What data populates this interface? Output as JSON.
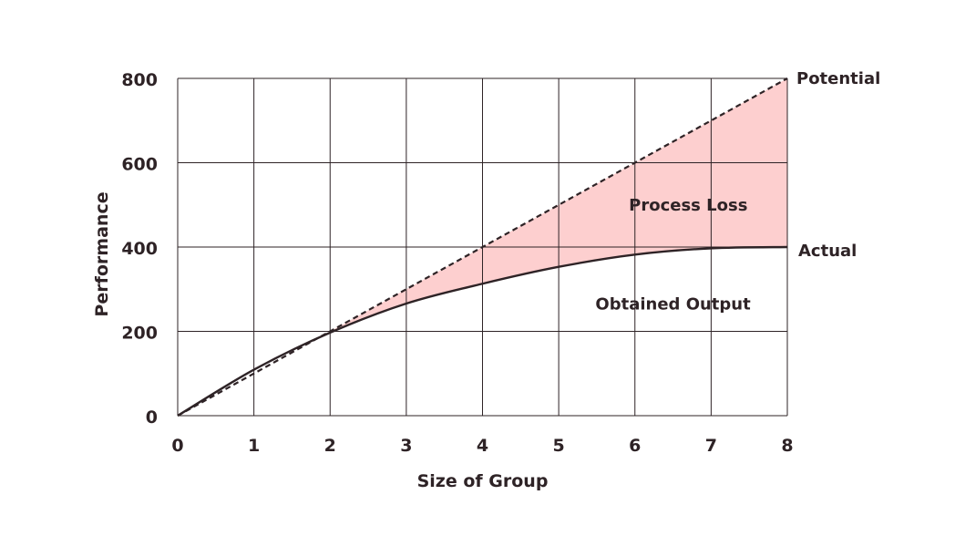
{
  "chart_data": {
    "type": "line",
    "xlabel": "Size of Group",
    "ylabel": "Performance",
    "xlim": [
      0,
      8
    ],
    "ylim": [
      0,
      800
    ],
    "x_ticks": [
      0,
      1,
      2,
      3,
      4,
      5,
      6,
      7,
      8
    ],
    "y_ticks": [
      0,
      200,
      400,
      600,
      800
    ],
    "grid": true,
    "series": [
      {
        "name": "Potential",
        "style": "dashed",
        "x": [
          0,
          1,
          2,
          3,
          4,
          5,
          6,
          7,
          8
        ],
        "values": [
          0,
          100,
          200,
          300,
          400,
          500,
          600,
          700,
          800
        ]
      },
      {
        "name": "Actual",
        "style": "solid",
        "x": [
          0,
          1,
          2,
          3,
          4,
          5,
          6,
          7,
          8
        ],
        "values": [
          0,
          109,
          197,
          266,
          313,
          353,
          382,
          397,
          400
        ]
      }
    ],
    "shaded_region": {
      "label": "Process Loss",
      "color": "#fdcfcf",
      "between": [
        "Potential",
        "Actual"
      ],
      "x_from": 2,
      "x_to": 8
    },
    "annotations": [
      {
        "text": "Process Loss",
        "x": 6.7,
        "y": 500
      },
      {
        "text": "Obtained Output",
        "x": 6.5,
        "y": 265
      }
    ],
    "colors": {
      "line": "#2e2326",
      "grid": "#2e2326",
      "fill": "#fdcfcf"
    }
  }
}
